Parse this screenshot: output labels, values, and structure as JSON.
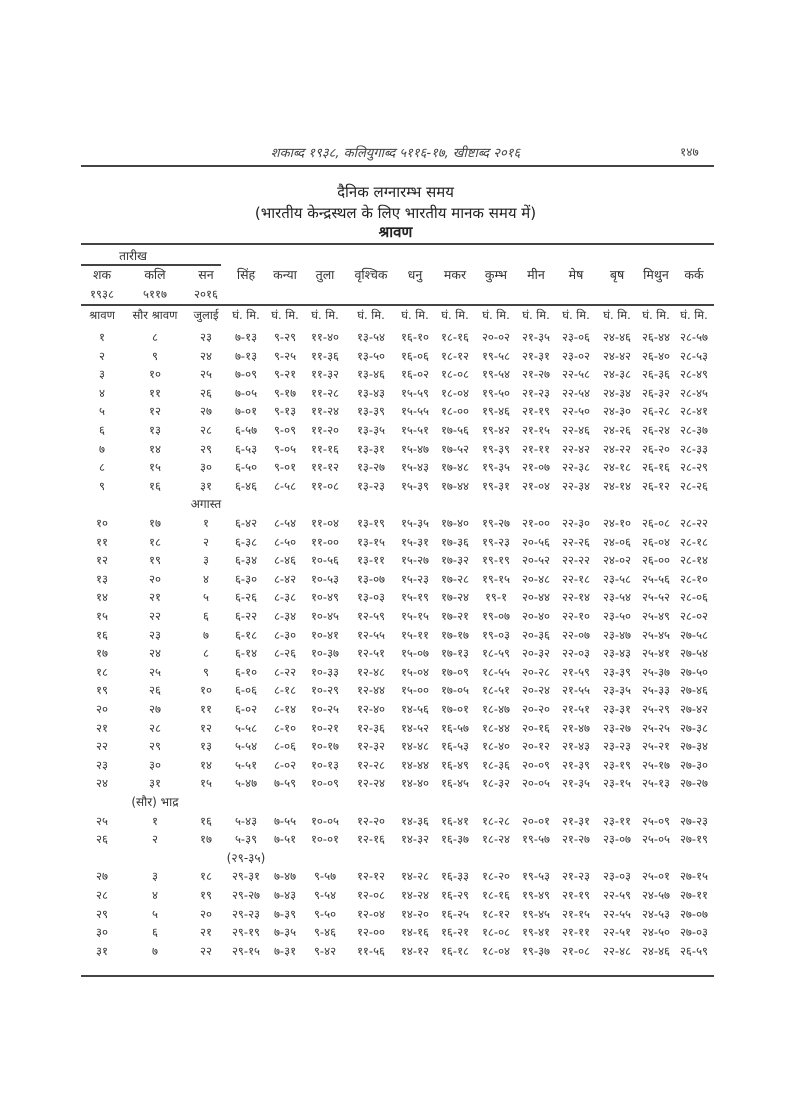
{
  "running_header": "शकाब्द १९३८, कलियुगाब्द ५११६-१७, खीष्टाब्द २०१६",
  "page_number": "१४७",
  "title": {
    "line1": "दैनिक लग्नारम्भ समय",
    "line2": "(भारतीय केन्द्रस्थल के लिए भारतीय मानक समय में)",
    "month": "श्रावण"
  },
  "table": {
    "group_header": "तारीख",
    "columns": [
      "शक",
      "कलि",
      "सन",
      "सिंह",
      "कन्या",
      "तुला",
      "वृश्चिक",
      "धनु",
      "मकर",
      "कुम्भ",
      "मीन",
      "मेष",
      "बृष",
      "मिथुन",
      "कर्क"
    ],
    "years": [
      "१९३८",
      "५११७",
      "२०१६"
    ],
    "units": [
      "श्रावण",
      "सौर श्रावण",
      "जुलाई",
      "घं. मि.",
      "घं. मि.",
      "घं. मि.",
      "घं. मि.",
      "घं. मि.",
      "घं. मि.",
      "घं. मि.",
      "घं. मि.",
      "घं. मि.",
      "घं. मि.",
      "घं. मि.",
      "घं. मि."
    ],
    "lines": [
      {
        "cells": [
          "१",
          "८",
          "२३",
          "७-१३",
          "९-२९",
          "११-४०",
          "१३-५४",
          "१६-१०",
          "१८-१६",
          "२०-०२",
          "२१-३५",
          "२३-०६",
          "२४-४६",
          "२६-४४",
          "२८-५७"
        ]
      },
      {
        "cells": [
          "२",
          "९",
          "२४",
          "७-१३",
          "९-२५",
          "११-३६",
          "१३-५०",
          "१६-०६",
          "१८-१२",
          "१९-५८",
          "२१-३१",
          "२३-०२",
          "२४-४२",
          "२६-४०",
          "२८-५३"
        ]
      },
      {
        "cells": [
          "३",
          "१०",
          "२५",
          "७-०९",
          "९-२१",
          "११-३२",
          "१३-४६",
          "१६-०२",
          "१८-०८",
          "१९-५४",
          "२१-२७",
          "२२-५८",
          "२४-३८",
          "२६-३६",
          "२८-४९"
        ]
      },
      {
        "cells": [
          "४",
          "११",
          "२६",
          "७-०५",
          "९-१७",
          "११-२८",
          "१३-४३",
          "१५-५९",
          "१८-०४",
          "१९-५०",
          "२१-२३",
          "२२-५४",
          "२४-३४",
          "२६-३२",
          "२८-४५"
        ]
      },
      {
        "cells": [
          "५",
          "१२",
          "२७",
          "७-०१",
          "९-१३",
          "११-२४",
          "१३-३९",
          "१५-५५",
          "१८-००",
          "१९-४६",
          "२१-१९",
          "२२-५०",
          "२४-३०",
          "२६-२८",
          "२८-४१"
        ]
      },
      {
        "cells": [
          "६",
          "१३",
          "२८",
          "६-५७",
          "९-०९",
          "११-२०",
          "१३-३५",
          "१५-५१",
          "१७-५६",
          "१९-४२",
          "२१-१५",
          "२२-४६",
          "२४-२६",
          "२६-२४",
          "२८-३७"
        ]
      },
      {
        "cells": [
          "७",
          "१४",
          "२९",
          "६-५३",
          "९-०५",
          "११-१६",
          "१३-३१",
          "१५-४७",
          "१७-५२",
          "१९-३९",
          "२१-११",
          "२२-४२",
          "२४-२२",
          "२६-२०",
          "२८-३३"
        ]
      },
      {
        "cells": [
          "८",
          "१५",
          "३०",
          "६-५०",
          "९-०१",
          "११-१२",
          "१३-२७",
          "१५-४३",
          "१७-४८",
          "१९-३५",
          "२१-०७",
          "२२-३८",
          "२४-१८",
          "२६-१६",
          "२८-२९"
        ]
      },
      {
        "cells": [
          "९",
          "१६",
          "३१",
          "६-४६",
          "८-५८",
          "११-०८",
          "१३-२३",
          "१५-३९",
          "१७-४४",
          "१९-३१",
          "२१-०४",
          "२२-३४",
          "२४-१४",
          "२६-१२",
          "२८-२६"
        ]
      },
      {
        "label": "अगास्त",
        "col": "san"
      },
      {
        "cells": [
          "१०",
          "१७",
          "१",
          "६-४२",
          "८-५४",
          "११-०४",
          "१३-१९",
          "१५-३५",
          "१७-४०",
          "१९-२७",
          "२१-००",
          "२२-३०",
          "२४-१०",
          "२६-०८",
          "२८-२२"
        ]
      },
      {
        "cells": [
          "११",
          "१८",
          "२",
          "६-३८",
          "८-५०",
          "११-००",
          "१३-१५",
          "१५-३१",
          "१७-३६",
          "१९-२३",
          "२०-५६",
          "२२-२६",
          "२४-०६",
          "२६-०४",
          "२८-१८"
        ]
      },
      {
        "cells": [
          "१२",
          "१९",
          "३",
          "६-३४",
          "८-४६",
          "१०-५६",
          "१३-११",
          "१५-२७",
          "१७-३२",
          "१९-१९",
          "२०-५२",
          "२२-२२",
          "२४-०२",
          "२६-००",
          "२८-१४"
        ]
      },
      {
        "cells": [
          "१३",
          "२०",
          "४",
          "६-३०",
          "८-४२",
          "१०-५३",
          "१३-०७",
          "१५-२३",
          "१७-२८",
          "१९-१५",
          "२०-४८",
          "२२-१८",
          "२३-५८",
          "२५-५६",
          "२८-१०"
        ]
      },
      {
        "cells": [
          "१४",
          "२१",
          "५",
          "६-२६",
          "८-३८",
          "१०-४९",
          "१३-०३",
          "१५-१९",
          "१७-२४",
          "१९-१",
          "२०-४४",
          "२२-१४",
          "२३-५४",
          "२५-५२",
          "२८-०६"
        ]
      },
      {
        "cells": [
          "१५",
          "२२",
          "६",
          "६-२२",
          "८-३४",
          "१०-४५",
          "१२-५९",
          "१५-१५",
          "१७-२१",
          "१९-०७",
          "२०-४०",
          "२२-१०",
          "२३-५०",
          "२५-४९",
          "२८-०२"
        ]
      },
      {
        "cells": [
          "१६",
          "२३",
          "७",
          "६-१८",
          "८-३०",
          "१०-४१",
          "१२-५५",
          "१५-११",
          "१७-१७",
          "१९-०३",
          "२०-३६",
          "२२-०७",
          "२३-४७",
          "२५-४५",
          "२७-५८"
        ]
      },
      {
        "cells": [
          "१७",
          "२४",
          "८",
          "६-१४",
          "८-२६",
          "१०-३७",
          "१२-५१",
          "१५-०७",
          "१७-१३",
          "१८-५९",
          "२०-३२",
          "२२-०३",
          "२३-४३",
          "२५-४१",
          "२७-५४"
        ]
      },
      {
        "cells": [
          "१८",
          "२५",
          "९",
          "६-१०",
          "८-२२",
          "१०-३३",
          "१२-४८",
          "१५-०४",
          "१७-०९",
          "१८-५५",
          "२०-२८",
          "२१-५९",
          "२३-३९",
          "२५-३७",
          "२७-५०"
        ]
      },
      {
        "cells": [
          "१९",
          "२६",
          "१०",
          "६-०६",
          "८-१८",
          "१०-२९",
          "१२-४४",
          "१५-००",
          "१७-०५",
          "१८-५१",
          "२०-२४",
          "२१-५५",
          "२३-३५",
          "२५-३३",
          "२७-४६"
        ]
      },
      {
        "cells": [
          "२०",
          "२७",
          "११",
          "६-०२",
          "८-१४",
          "१०-२५",
          "१२-४०",
          "१४-५६",
          "१७-०१",
          "१८-४७",
          "२०-२०",
          "२१-५१",
          "२३-३१",
          "२५-२९",
          "२७-४२"
        ]
      },
      {
        "cells": [
          "२१",
          "२८",
          "१२",
          "५-५८",
          "८-१०",
          "१०-२१",
          "१२-३६",
          "१४-५२",
          "१६-५७",
          "१८-४४",
          "२०-१६",
          "२१-४७",
          "२३-२७",
          "२५-२५",
          "२७-३८"
        ]
      },
      {
        "cells": [
          "२२",
          "२९",
          "१३",
          "५-५४",
          "८-०६",
          "१०-१७",
          "१२-३२",
          "१४-४८",
          "१६-५३",
          "१८-४०",
          "२०-१२",
          "२१-४३",
          "२३-२३",
          "२५-२१",
          "२७-३४"
        ]
      },
      {
        "cells": [
          "२३",
          "३०",
          "१४",
          "५-५१",
          "८-०२",
          "१०-१३",
          "१२-२८",
          "१४-४४",
          "१६-४९",
          "१८-३६",
          "२०-०९",
          "२१-३९",
          "२३-१९",
          "२५-१७",
          "२७-३०"
        ]
      },
      {
        "cells": [
          "२४",
          "३१",
          "१५",
          "५-४७",
          "७-५९",
          "१०-०९",
          "१२-२४",
          "१४-४०",
          "१६-४५",
          "१८-३२",
          "२०-०५",
          "२१-३५",
          "२३-१५",
          "२५-१३",
          "२७-२७"
        ]
      },
      {
        "label": "(सौर)  भाद्र",
        "col": "kali"
      },
      {
        "cells": [
          "२५",
          "१",
          "१६",
          "५-४३",
          "७-५५",
          "१०-०५",
          "१२-२०",
          "१४-३६",
          "१६-४१",
          "१८-२८",
          "२०-०१",
          "२१-३१",
          "२३-११",
          "२५-०९",
          "२७-२३"
        ]
      },
      {
        "cells": [
          "२६",
          "२",
          "१७",
          "५-३९",
          "७-५१",
          "१०-०१",
          "१२-१६",
          "१४-३२",
          "१६-३७",
          "१८-२४",
          "१९-५७",
          "२१-२७",
          "२३-०७",
          "२५-०५",
          "२७-१९"
        ]
      },
      {
        "label": "(२९-३५)",
        "col": "singh"
      },
      {
        "cells": [
          "२७",
          "३",
          "१८",
          "२९-३१",
          "७-४७",
          "९-५७",
          "१२-१२",
          "१४-२८",
          "१६-३३",
          "१८-२०",
          "१९-५३",
          "२१-२३",
          "२३-०३",
          "२५-०१",
          "२७-१५"
        ]
      },
      {
        "cells": [
          "२८",
          "४",
          "१९",
          "२९-२७",
          "७-४३",
          "९-५४",
          "१२-०८",
          "१४-२४",
          "१६-२९",
          "१८-१६",
          "१९-४९",
          "२१-१९",
          "२२-५९",
          "२४-५७",
          "२७-११"
        ]
      },
      {
        "cells": [
          "२९",
          "५",
          "२०",
          "२९-२३",
          "७-३९",
          "९-५०",
          "१२-०४",
          "१४-२०",
          "१६-२५",
          "१८-१२",
          "१९-४५",
          "२१-१५",
          "२२-५५",
          "२४-५३",
          "२७-०७"
        ]
      },
      {
        "cells": [
          "३०",
          "६",
          "२१",
          "२९-१९",
          "७-३५",
          "९-४६",
          "१२-००",
          "१४-१६",
          "१६-२१",
          "१८-०८",
          "१९-४१",
          "२१-११",
          "२२-५१",
          "२४-५०",
          "२७-०३"
        ]
      },
      {
        "cells": [
          "३१",
          "७",
          "२२",
          "२९-१५",
          "७-३१",
          "९-४२",
          "११-५६",
          "१४-१२",
          "१६-१८",
          "१८-०४",
          "१९-३७",
          "२१-०८",
          "२२-४८",
          "२४-४६",
          "२६-५९"
        ]
      }
    ]
  }
}
